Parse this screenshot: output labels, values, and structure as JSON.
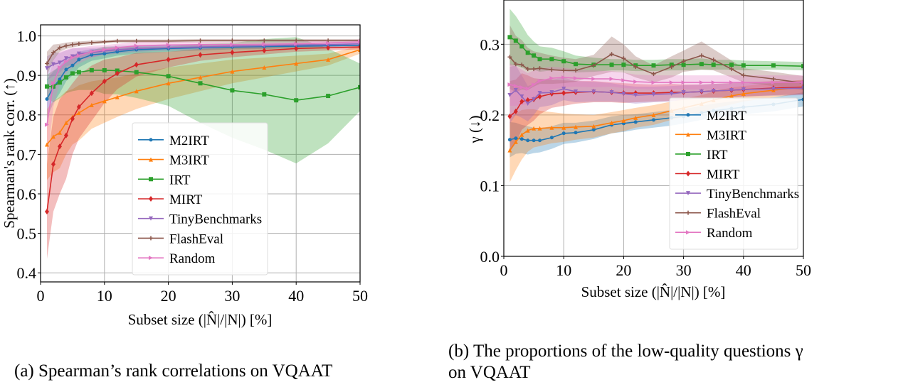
{
  "colors": {
    "M2IRT": "#1f77b4",
    "M3IRT": "#ff7f0e",
    "IRT": "#2ca02c",
    "MIRT": "#d62728",
    "TinyBenchmarks": "#9467bd",
    "FlashEval": "#8c564b",
    "Random": "#e377c2"
  },
  "chart_data": [
    {
      "type": "line",
      "title": "",
      "caption": "(a) Spearman’s rank correlations on VQAAT",
      "xlabel": "Subset size (|N̂|/|N|) [%]",
      "ylabel": "Spearman's rank corr. (↑)",
      "xlim": [
        0,
        50
      ],
      "ylim": [
        0.377,
        1.028
      ],
      "xticks": [
        "0",
        "10",
        "20",
        "30",
        "40",
        "50"
      ],
      "yticks": [
        "0.4",
        "0.5",
        "0.6",
        "0.7",
        "0.8",
        "0.9",
        "1.0"
      ],
      "grid": true,
      "legend_position": "center",
      "x": [
        1,
        2,
        3,
        4,
        5,
        6,
        8,
        10,
        12,
        15,
        20,
        25,
        30,
        35,
        40,
        45,
        50
      ],
      "series": [
        {
          "name": "M2IRT",
          "marker": "circle",
          "values": [
            0.84,
            0.87,
            0.89,
            0.915,
            0.925,
            0.94,
            0.952,
            0.955,
            0.96,
            0.965,
            0.968,
            0.97,
            0.972,
            0.973,
            0.974,
            0.975,
            0.976
          ],
          "spread": [
            0.05,
            0.04,
            0.035,
            0.03,
            0.025,
            0.02,
            0.015,
            0.012,
            0.01,
            0.01,
            0.008,
            0.007,
            0.006,
            0.006,
            0.005,
            0.005,
            0.005
          ]
        },
        {
          "name": "M3IRT",
          "marker": "triangle-up",
          "values": [
            0.725,
            0.745,
            0.755,
            0.78,
            0.795,
            0.805,
            0.825,
            0.835,
            0.845,
            0.86,
            0.88,
            0.895,
            0.91,
            0.92,
            0.93,
            0.94,
            0.965
          ],
          "spread": [
            0.09,
            0.09,
            0.09,
            0.08,
            0.07,
            0.07,
            0.06,
            0.055,
            0.05,
            0.045,
            0.04,
            0.035,
            0.03,
            0.025,
            0.02,
            0.015,
            0.01
          ]
        },
        {
          "name": "IRT",
          "marker": "square",
          "values": [
            0.872,
            0.872,
            0.882,
            0.895,
            0.905,
            0.908,
            0.913,
            0.913,
            0.912,
            0.908,
            0.898,
            0.88,
            0.862,
            0.852,
            0.837,
            0.848,
            0.87
          ],
          "spread": [
            0.03,
            0.04,
            0.04,
            0.04,
            0.045,
            0.045,
            0.05,
            0.06,
            0.06,
            0.065,
            0.075,
            0.1,
            0.12,
            0.14,
            0.16,
            0.12,
            0.06
          ]
        },
        {
          "name": "MIRT",
          "marker": "diamond",
          "values": [
            0.555,
            0.675,
            0.72,
            0.748,
            0.79,
            0.82,
            0.855,
            0.885,
            0.905,
            0.927,
            0.94,
            0.952,
            0.958,
            0.963,
            0.968,
            0.97,
            0.972
          ],
          "spread": [
            0.12,
            0.12,
            0.12,
            0.11,
            0.09,
            0.08,
            0.07,
            0.055,
            0.04,
            0.03,
            0.02,
            0.015,
            0.012,
            0.01,
            0.008,
            0.007,
            0.006
          ]
        },
        {
          "name": "TinyBenchmarks",
          "marker": "triangle-down",
          "values": [
            0.918,
            0.928,
            0.932,
            0.943,
            0.948,
            0.955,
            0.958,
            0.962,
            0.965,
            0.968,
            0.97,
            0.972,
            0.974,
            0.975,
            0.977,
            0.978,
            0.98
          ],
          "spread": [
            0.03,
            0.03,
            0.025,
            0.02,
            0.02,
            0.015,
            0.012,
            0.01,
            0.01,
            0.008,
            0.007,
            0.006,
            0.005,
            0.005,
            0.005,
            0.005,
            0.005
          ]
        },
        {
          "name": "FlashEval",
          "marker": "plus",
          "values": [
            0.93,
            0.958,
            0.97,
            0.975,
            0.978,
            0.98,
            0.983,
            0.985,
            0.987,
            0.987,
            0.987,
            0.988,
            0.988,
            0.988,
            0.988,
            0.988,
            0.988
          ],
          "spread": [
            0.03,
            0.02,
            0.01,
            0.008,
            0.007,
            0.006,
            0.005,
            0.004,
            0.004,
            0.004,
            0.004,
            0.004,
            0.004,
            0.004,
            0.004,
            0.004,
            0.004
          ]
        },
        {
          "name": "Random",
          "marker": "triangle-right",
          "values": [
            0.775,
            0.88,
            0.92,
            0.935,
            0.945,
            0.95,
            0.96,
            0.965,
            0.97,
            0.975,
            0.977,
            0.978,
            0.978,
            0.979,
            0.98,
            0.982,
            0.985
          ],
          "spread": [
            0.1,
            0.06,
            0.04,
            0.03,
            0.025,
            0.02,
            0.015,
            0.012,
            0.01,
            0.01,
            0.008,
            0.007,
            0.006,
            0.006,
            0.006,
            0.006,
            0.006
          ]
        }
      ]
    },
    {
      "type": "line",
      "title": "",
      "caption_line1": "(b) The proportions of the low-quality questions γ",
      "caption_line2": "on VQAAT",
      "xlabel": "Subset size (|N̂|/|N|) [%]",
      "ylabel": "γ (↓)",
      "xlim": [
        0,
        50
      ],
      "ylim": [
        0,
        0.3626
      ],
      "xticks": [
        "0",
        "10",
        "20",
        "30",
        "40",
        "50"
      ],
      "yticks": [
        "0.0",
        "0.1",
        "0.2",
        "0.3"
      ],
      "grid": true,
      "legend_position": "lower-right",
      "x": [
        1,
        2,
        3,
        4,
        5,
        6,
        8,
        10,
        12,
        15,
        18,
        20,
        22,
        25,
        28,
        30,
        33,
        35,
        38,
        40,
        45,
        50
      ],
      "series": [
        {
          "name": "M2IRT",
          "marker": "circle",
          "values": [
            0.165,
            0.167,
            0.166,
            0.164,
            0.164,
            0.164,
            0.168,
            0.174,
            0.175,
            0.179,
            0.186,
            0.188,
            0.19,
            0.193,
            0.196,
            0.198,
            0.203,
            0.206,
            0.209,
            0.211,
            0.215,
            0.222
          ],
          "spread": [
            0.025,
            0.022,
            0.02,
            0.02,
            0.018,
            0.017,
            0.016,
            0.015,
            0.014,
            0.013,
            0.012,
            0.012,
            0.011,
            0.011,
            0.011,
            0.01,
            0.01,
            0.01,
            0.01,
            0.01,
            0.01,
            0.01
          ]
        },
        {
          "name": "M3IRT",
          "marker": "triangle-up",
          "values": [
            0.15,
            0.162,
            0.172,
            0.178,
            0.181,
            0.181,
            0.182,
            0.182,
            0.183,
            0.184,
            0.189,
            0.192,
            0.196,
            0.2,
            0.206,
            0.21,
            0.216,
            0.221,
            0.227,
            0.23,
            0.235,
            0.24
          ],
          "spread": [
            0.045,
            0.04,
            0.035,
            0.03,
            0.027,
            0.025,
            0.022,
            0.02,
            0.018,
            0.016,
            0.015,
            0.015,
            0.014,
            0.014,
            0.013,
            0.013,
            0.012,
            0.012,
            0.012,
            0.011,
            0.01,
            0.01
          ]
        },
        {
          "name": "IRT",
          "marker": "square",
          "values": [
            0.31,
            0.305,
            0.297,
            0.288,
            0.284,
            0.279,
            0.279,
            0.276,
            0.272,
            0.271,
            0.271,
            0.271,
            0.27,
            0.27,
            0.271,
            0.271,
            0.272,
            0.271,
            0.271,
            0.27,
            0.27,
            0.269
          ],
          "spread": [
            0.04,
            0.035,
            0.03,
            0.025,
            0.02,
            0.018,
            0.016,
            0.014,
            0.012,
            0.01,
            0.008,
            0.008,
            0.008,
            0.008,
            0.008,
            0.008,
            0.008,
            0.007,
            0.007,
            0.007,
            0.006,
            0.006
          ]
        },
        {
          "name": "MIRT",
          "marker": "diamond",
          "values": [
            0.198,
            0.205,
            0.219,
            0.221,
            0.222,
            0.226,
            0.23,
            0.231,
            0.232,
            0.233,
            0.232,
            0.231,
            0.231,
            0.231,
            0.232,
            0.232,
            0.233,
            0.234,
            0.235,
            0.236,
            0.238,
            0.239
          ],
          "spread": [
            0.05,
            0.045,
            0.04,
            0.035,
            0.03,
            0.025,
            0.02,
            0.018,
            0.016,
            0.015,
            0.014,
            0.014,
            0.013,
            0.012,
            0.012,
            0.011,
            0.01,
            0.01,
            0.01,
            0.01,
            0.01,
            0.01
          ]
        },
        {
          "name": "TinyBenchmarks",
          "marker": "triangle-down",
          "values": [
            0.228,
            0.235,
            0.226,
            0.216,
            0.222,
            0.231,
            0.232,
            0.237,
            0.233,
            0.233,
            0.232,
            0.23,
            0.228,
            0.229,
            0.23,
            0.232,
            0.233,
            0.234,
            0.235,
            0.236,
            0.237,
            0.238
          ],
          "spread": [
            0.04,
            0.035,
            0.03,
            0.025,
            0.022,
            0.02,
            0.018,
            0.016,
            0.015,
            0.014,
            0.013,
            0.012,
            0.012,
            0.011,
            0.011,
            0.01,
            0.01,
            0.01,
            0.01,
            0.01,
            0.01,
            0.01
          ]
        },
        {
          "name": "FlashEval",
          "marker": "plus",
          "values": [
            0.282,
            0.272,
            0.271,
            0.265,
            0.265,
            0.266,
            0.264,
            0.263,
            0.263,
            0.27,
            0.286,
            0.28,
            0.268,
            0.258,
            0.268,
            0.276,
            0.284,
            0.278,
            0.265,
            0.256,
            0.251,
            0.245
          ],
          "spread": [
            0.045,
            0.04,
            0.035,
            0.03,
            0.025,
            0.022,
            0.02,
            0.018,
            0.016,
            0.015,
            0.025,
            0.02,
            0.015,
            0.012,
            0.015,
            0.015,
            0.02,
            0.015,
            0.012,
            0.01,
            0.01,
            0.01
          ]
        },
        {
          "name": "Random",
          "marker": "triangle-right",
          "values": [
            0.243,
            0.241,
            0.239,
            0.237,
            0.243,
            0.248,
            0.252,
            0.253,
            0.252,
            0.251,
            0.251,
            0.249,
            0.247,
            0.246,
            0.246,
            0.246,
            0.246,
            0.246,
            0.246,
            0.246,
            0.246,
            0.246
          ],
          "spread": [
            0.03,
            0.028,
            0.025,
            0.022,
            0.02,
            0.018,
            0.016,
            0.014,
            0.012,
            0.012,
            0.011,
            0.011,
            0.01,
            0.01,
            0.01,
            0.01,
            0.01,
            0.01,
            0.01,
            0.01,
            0.01,
            0.01
          ]
        }
      ]
    }
  ]
}
